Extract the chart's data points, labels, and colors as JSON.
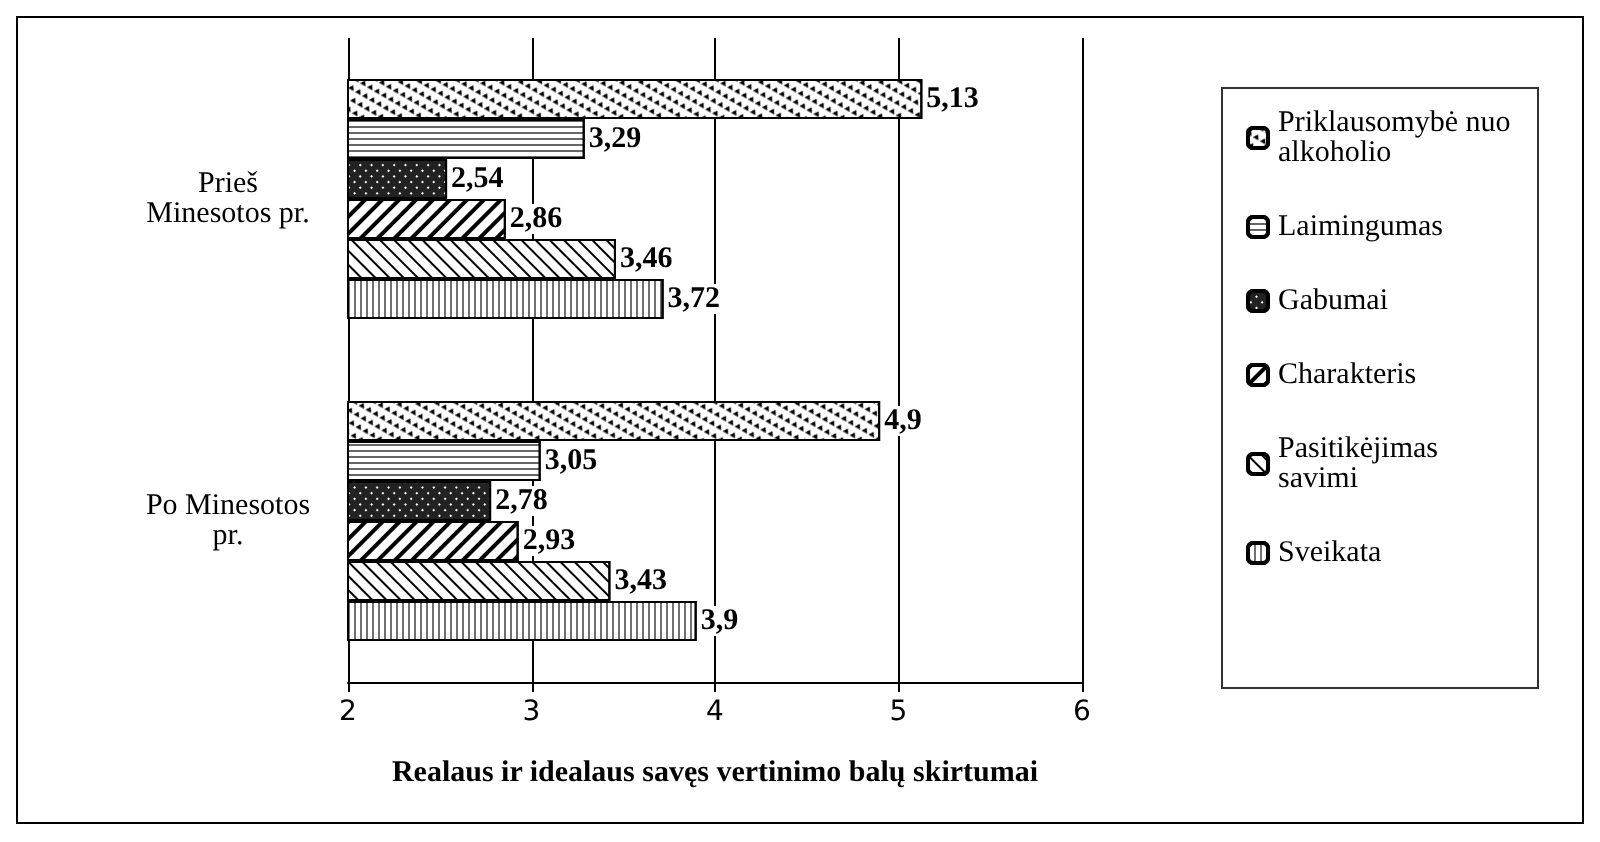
{
  "chart_data": {
    "type": "bar",
    "orientation": "horizontal",
    "xlabel": "Realaus ir idealaus savęs vertinimo balų skirtumai",
    "categories": [
      "Prieš\nMinesotos pr.",
      "Po Minesotos\npr."
    ],
    "series": [
      {
        "name": "Priklausomybė nuo alkoholio",
        "color": "#ffffff",
        "values": [
          5.13,
          4.9
        ],
        "value_labels": [
          "5,13",
          "4,9"
        ]
      },
      {
        "name": "Laimingumas",
        "color": "#ffffff",
        "values": [
          3.29,
          3.05
        ],
        "value_labels": [
          "3,29",
          "3,05"
        ]
      },
      {
        "name": "Gabumai",
        "color": "#222222",
        "values": [
          2.54,
          2.78
        ],
        "value_labels": [
          "2,54",
          "2,78"
        ]
      },
      {
        "name": "Charakteris",
        "color": "#ffffff",
        "values": [
          2.86,
          2.93
        ],
        "value_labels": [
          "2,86",
          "2,93"
        ]
      },
      {
        "name": "Pasitikėjimas savimi",
        "color": "#ffffff",
        "values": [
          3.46,
          3.43
        ],
        "value_labels": [
          "3,46",
          "3,43"
        ]
      },
      {
        "name": "Sveikata",
        "color": "#ffffff",
        "values": [
          3.72,
          3.9
        ],
        "value_labels": [
          "3,72",
          "3,9"
        ]
      }
    ],
    "xlim": [
      2,
      6
    ],
    "xticks": [
      2,
      3,
      4,
      5,
      6
    ],
    "grid": "x",
    "legend": "right"
  }
}
